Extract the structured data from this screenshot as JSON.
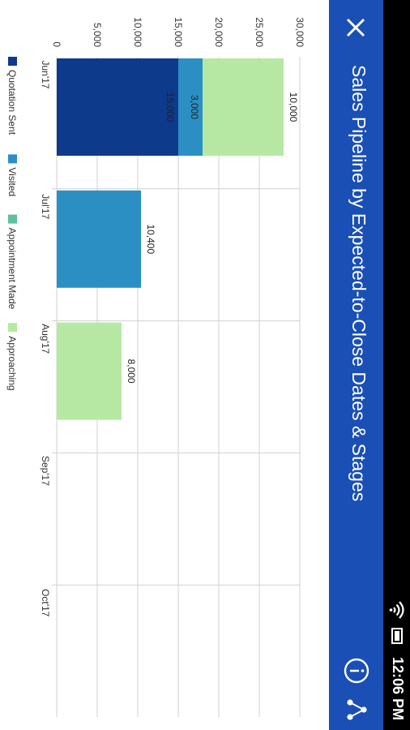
{
  "status_bar": {
    "time": "12:06 PM"
  },
  "app_bar": {
    "title": "Sales Pipeline by Expected-to-Close Dates & Stages"
  },
  "icons": {
    "close": "close-icon",
    "info": "info-icon",
    "share": "share-icon",
    "wifi": "wifi-icon",
    "battery": "battery-icon"
  },
  "colors": {
    "app_bar": "#1a4fb5",
    "status_bar": "#000000",
    "grid": "#d0d0d0"
  },
  "chart_data": {
    "type": "bar",
    "orientation": "horizontal",
    "stacked": true,
    "categories": [
      "Jun'17",
      "Jul'17",
      "Aug'17",
      "Sep'17",
      "Oct'17"
    ],
    "value_axis": {
      "min": 0,
      "max": 30000,
      "ticks": [
        "0",
        "5,000",
        "10,000",
        "15,000",
        "20,000",
        "25,000",
        "30,000"
      ]
    },
    "series": [
      {
        "name": "Quotation Sent",
        "color": "#0e3a8c",
        "values": [
          15000,
          0,
          0,
          0,
          0
        ],
        "labels": [
          "15,000",
          "",
          "",
          "",
          ""
        ]
      },
      {
        "name": "Visited",
        "color": "#2b8fc4",
        "values": [
          3000,
          10400,
          0,
          0,
          0
        ],
        "labels": [
          "3,000",
          "10,400",
          "",
          "",
          ""
        ]
      },
      {
        "name": "Appointment Made",
        "color": "#5fbfa0",
        "values": [
          0,
          0,
          0,
          0,
          0
        ],
        "labels": [
          "",
          "",
          "",
          "",
          ""
        ]
      },
      {
        "name": "Approaching",
        "color": "#b7e8a3",
        "values": [
          10000,
          0,
          8000,
          0,
          0
        ],
        "labels": [
          "10,000",
          "",
          "8,000",
          "",
          ""
        ]
      }
    ],
    "grid": true,
    "legend_position": "bottom"
  }
}
